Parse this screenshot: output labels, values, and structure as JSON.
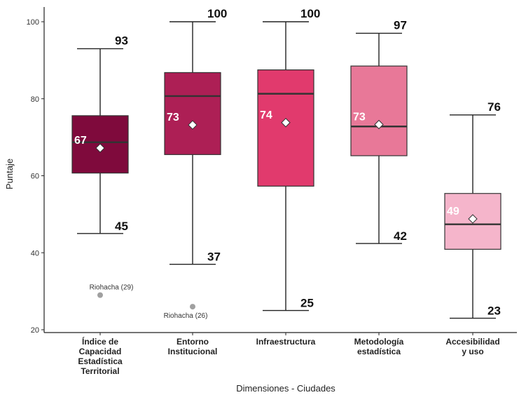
{
  "chart_data": {
    "type": "boxplot",
    "xlabel": "Dimensiones - Ciudades",
    "ylabel": "Puntaje",
    "ylim": [
      19,
      104
    ],
    "yticks": [
      20,
      40,
      60,
      80,
      100
    ],
    "grid": false,
    "categories": [
      {
        "label_lines": [
          "Índice de",
          "Capacidad",
          "Estadística",
          "Territorial"
        ],
        "whisker_low": 45,
        "q1": 60.7,
        "median": 68.7,
        "q3": 75.6,
        "whisker_high": 93,
        "mean": 67.2,
        "mean_label": "67",
        "low_label": "45",
        "high_label": "93",
        "color": "#7f0a3c",
        "outliers": [
          {
            "value": 29,
            "label": "Riohacha (29)"
          }
        ]
      },
      {
        "label_lines": [
          "Entorno",
          "Institucional"
        ],
        "whisker_low": 37,
        "q1": 65.5,
        "median": 80.7,
        "q3": 86.8,
        "whisker_high": 100,
        "mean": 73.2,
        "mean_label": "73",
        "low_label": "37",
        "high_label": "100",
        "color": "#ad1f55",
        "outliers": [
          {
            "value": 26,
            "label": "Riohacha (26)"
          }
        ]
      },
      {
        "label_lines": [
          "Infraestructura"
        ],
        "whisker_low": 25,
        "q1": 57.3,
        "median": 81.3,
        "q3": 87.5,
        "whisker_high": 100,
        "mean": 73.8,
        "mean_label": "74",
        "low_label": "25",
        "high_label": "100",
        "color": "#e13a6d",
        "outliers": []
      },
      {
        "label_lines": [
          "Metodología",
          "estadística"
        ],
        "whisker_low": 42.4,
        "q1": 65.2,
        "median": 72.8,
        "q3": 88.5,
        "whisker_high": 97,
        "mean": 73.3,
        "mean_label": "73",
        "low_label": "42",
        "high_label": "97",
        "color": "#e87898",
        "outliers": []
      },
      {
        "label_lines": [
          "Accesibilidad",
          "y uso"
        ],
        "whisker_low": 23,
        "q1": 40.9,
        "median": 47.4,
        "q3": 55.4,
        "whisker_high": 75.8,
        "mean": 48.8,
        "mean_label": "49",
        "low_label": "23",
        "high_label": "76",
        "color": "#f5b5cb",
        "outliers": []
      }
    ]
  }
}
